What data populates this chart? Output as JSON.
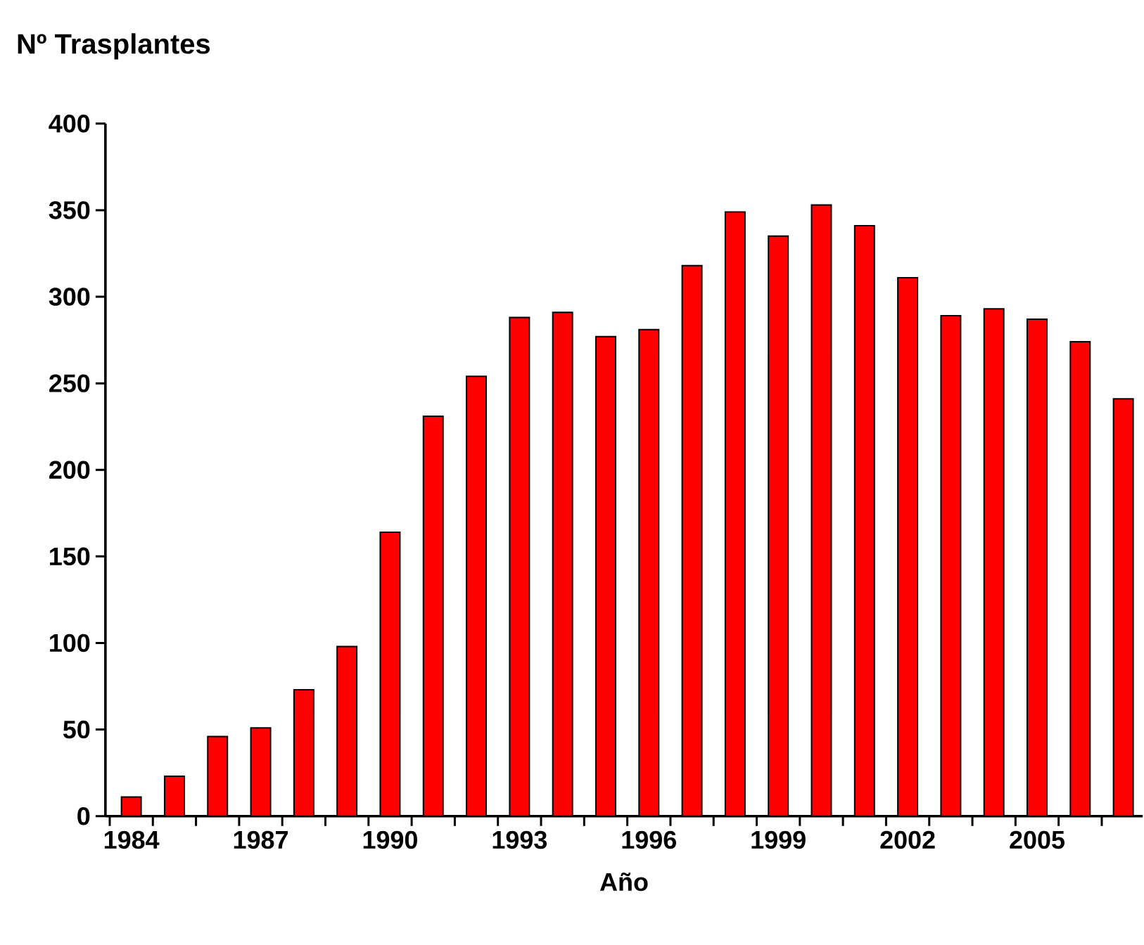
{
  "chart_data": {
    "type": "bar",
    "ylabel": "Nº Trasplantes",
    "xlabel": "Año",
    "categories": [
      "1984",
      null,
      null,
      "1987",
      null,
      null,
      "1990",
      null,
      null,
      "1993",
      null,
      null,
      "1996",
      null,
      null,
      "1999",
      null,
      null,
      "2002",
      null,
      null,
      "2005",
      null,
      null
    ],
    "values": [
      11,
      23,
      46,
      51,
      73,
      98,
      164,
      231,
      254,
      288,
      291,
      277,
      281,
      318,
      349,
      335,
      353,
      341,
      311,
      289,
      293,
      287,
      274,
      241
    ],
    "color": "#ff0000",
    "ylim": [
      0,
      400
    ],
    "yticks": [
      0,
      50,
      100,
      150,
      200,
      250,
      300,
      350,
      400
    ]
  }
}
